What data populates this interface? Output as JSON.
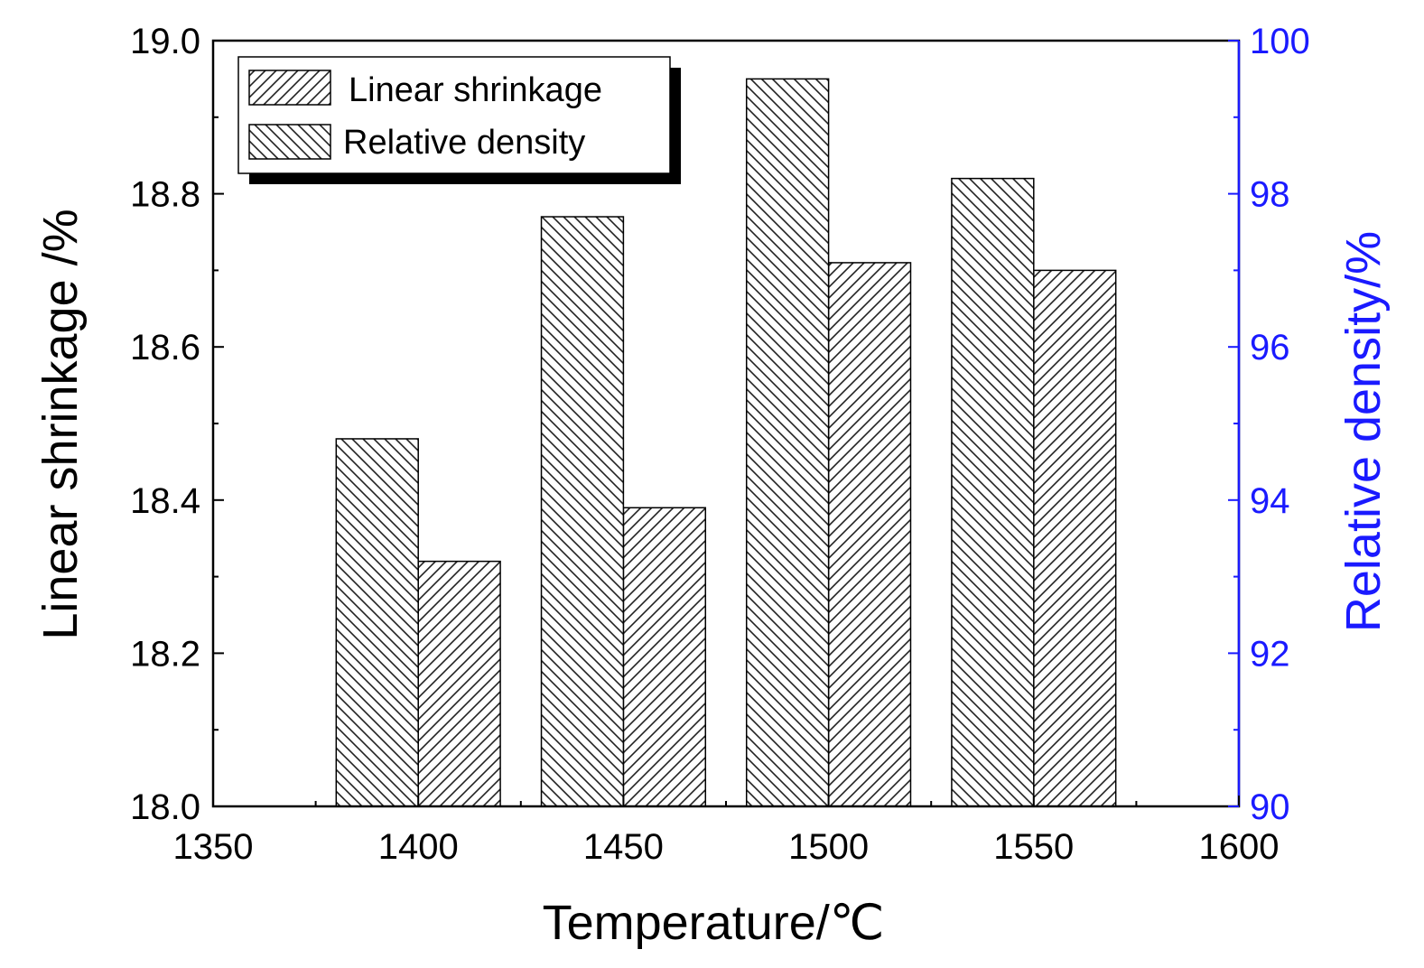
{
  "chart_data": {
    "type": "bar",
    "title": "",
    "xlabel": "Temperature/℃",
    "ylabel": "Linear shrinkage /%",
    "y2label": "Relative density/%",
    "xlim": [
      1350,
      1600
    ],
    "ylim": [
      18.0,
      19.0
    ],
    "y2lim": [
      90,
      100
    ],
    "x_ticks": [
      "1350",
      "1400",
      "1450",
      "1500",
      "1550",
      "1600"
    ],
    "y_ticks": [
      "18.0",
      "18.2",
      "18.4",
      "18.6",
      "18.8",
      "19.0"
    ],
    "y2_ticks": [
      "90",
      "92",
      "94",
      "96",
      "98",
      "100"
    ],
    "categories": [
      1400,
      1450,
      1500,
      1550
    ],
    "series": [
      {
        "name": "Linear shrinkage",
        "axis": "left",
        "values": [
          18.32,
          18.39,
          18.71,
          18.7
        ]
      },
      {
        "name": "Relative density",
        "axis": "right",
        "values": [
          94.8,
          97.7,
          99.5,
          98.2
        ]
      }
    ],
    "legend_position": "top-left",
    "colors": {
      "left_axis": "#000000",
      "right_axis": "#1a1aff"
    }
  }
}
